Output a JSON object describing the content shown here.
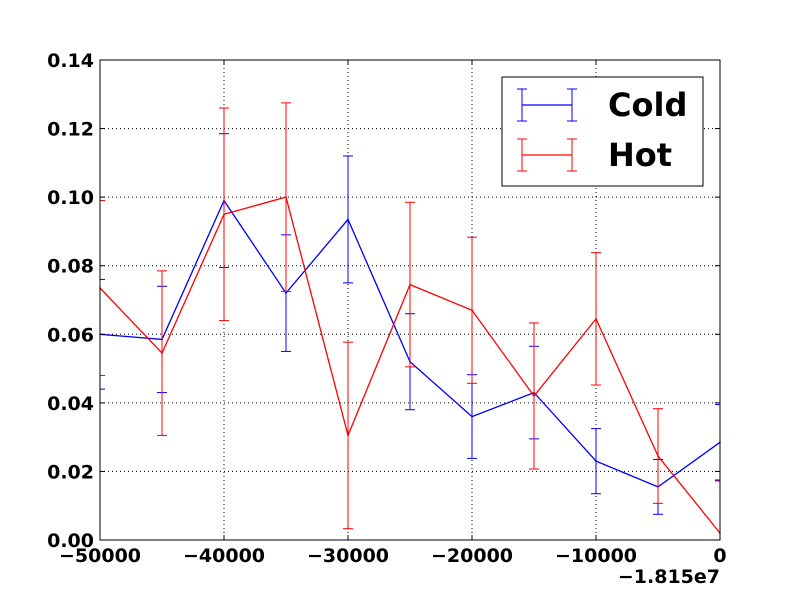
{
  "chart_data": {
    "type": "line",
    "title": "",
    "xlabel": "",
    "ylabel": "",
    "x_offset_label": "−1.815e7",
    "xlim": [
      -50000,
      0
    ],
    "ylim": [
      0.0,
      0.14
    ],
    "x_ticks": [
      -50000,
      -40000,
      -30000,
      -20000,
      -10000,
      0
    ],
    "x_tick_labels": [
      "−50000",
      "−40000",
      "−30000",
      "−20000",
      "−10000",
      "0"
    ],
    "y_ticks": [
      0.0,
      0.02,
      0.04,
      0.06,
      0.08,
      0.1,
      0.12,
      0.14
    ],
    "y_tick_labels": [
      "0.00",
      "0.02",
      "0.04",
      "0.06",
      "0.08",
      "0.10",
      "0.12",
      "0.14"
    ],
    "grid": true,
    "legend_position": "top-right",
    "x": [
      -50000,
      -45000,
      -40000,
      -35000,
      -30000,
      -25000,
      -20000,
      -15000,
      -10000,
      -5000,
      0
    ],
    "series": [
      {
        "name": "Cold",
        "color": "#0000ff",
        "values": [
          0.06,
          0.0585,
          0.099,
          0.072,
          0.0935,
          0.052,
          0.036,
          0.043,
          0.023,
          0.0155,
          0.0285
        ],
        "errors": [
          0.016,
          0.0155,
          0.0195,
          0.017,
          0.0185,
          0.014,
          0.0122,
          0.0135,
          0.0095,
          0.008,
          0.011
        ]
      },
      {
        "name": "Hot",
        "color": "#ff0000",
        "values": [
          0.0735,
          0.0545,
          0.095,
          0.1,
          0.0305,
          0.0745,
          0.067,
          0.042,
          0.0645,
          0.0245,
          0.002
        ],
        "errors": [
          0.0255,
          0.024,
          0.031,
          0.0275,
          0.0272,
          0.024,
          0.0213,
          0.0213,
          0.0193,
          0.0138,
          0.0152
        ]
      }
    ]
  }
}
